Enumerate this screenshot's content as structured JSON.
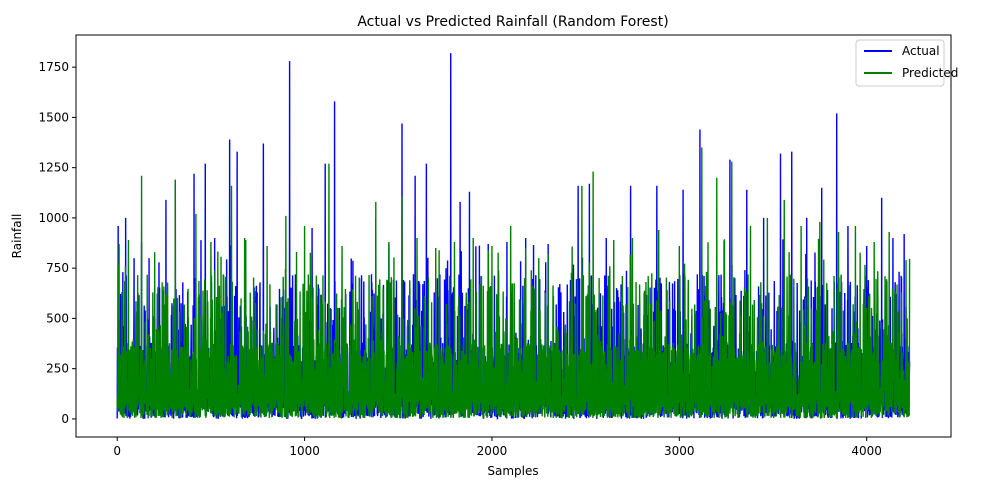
{
  "chart_data": {
    "type": "line",
    "title": "Actual vs Predicted Rainfall (Random Forest)",
    "xlabel": "Samples",
    "ylabel": "Rainfall",
    "xlim": [
      -220,
      4450
    ],
    "ylim": [
      -90,
      1910
    ],
    "xticks": [
      0,
      1000,
      2000,
      3000,
      4000
    ],
    "yticks": [
      0,
      250,
      500,
      750,
      1000,
      1250,
      1500,
      1750
    ],
    "n_samples": 4230,
    "grid": false,
    "legend": "top-right",
    "series": [
      {
        "name": "Actual",
        "color": "#0000ff",
        "peaks": [
          [
            5,
            960
          ],
          [
            30,
            730
          ],
          [
            45,
            1000
          ],
          [
            90,
            800
          ],
          [
            130,
            880
          ],
          [
            170,
            800
          ],
          [
            260,
            1090
          ],
          [
            310,
            1190
          ],
          [
            410,
            1220
          ],
          [
            470,
            1270
          ],
          [
            520,
            900
          ],
          [
            600,
            1390
          ],
          [
            640,
            1330
          ],
          [
            780,
            1370
          ],
          [
            920,
            1780
          ],
          [
            1040,
            950
          ],
          [
            1110,
            1270
          ],
          [
            1160,
            1580
          ],
          [
            1380,
            1000
          ],
          [
            1450,
            870
          ],
          [
            1520,
            1470
          ],
          [
            1590,
            1210
          ],
          [
            1650,
            1270
          ],
          [
            1780,
            1820
          ],
          [
            1830,
            1080
          ],
          [
            1880,
            1130
          ],
          [
            1980,
            870
          ],
          [
            2080,
            880
          ],
          [
            2180,
            900
          ],
          [
            2300,
            870
          ],
          [
            2460,
            1160
          ],
          [
            2520,
            1170
          ],
          [
            2610,
            900
          ],
          [
            2740,
            1160
          ],
          [
            2880,
            1160
          ],
          [
            3020,
            1140
          ],
          [
            3110,
            1440
          ],
          [
            3270,
            1290
          ],
          [
            3360,
            1140
          ],
          [
            3450,
            1000
          ],
          [
            3540,
            1320
          ],
          [
            3600,
            1330
          ],
          [
            3680,
            1000
          ],
          [
            3760,
            1150
          ],
          [
            3840,
            1520
          ],
          [
            3900,
            960
          ],
          [
            4000,
            860
          ],
          [
            4080,
            1100
          ],
          [
            4140,
            900
          ],
          [
            4200,
            920
          ]
        ]
      },
      {
        "name": "Predicted",
        "color": "#008000",
        "peaks": [
          [
            10,
            870
          ],
          [
            60,
            890
          ],
          [
            130,
            1210
          ],
          [
            200,
            830
          ],
          [
            310,
            1190
          ],
          [
            420,
            1020
          ],
          [
            500,
            880
          ],
          [
            610,
            1160
          ],
          [
            680,
            900
          ],
          [
            800,
            860
          ],
          [
            900,
            1010
          ],
          [
            1000,
            960
          ],
          [
            1130,
            1270
          ],
          [
            1200,
            860
          ],
          [
            1380,
            1080
          ],
          [
            1450,
            880
          ],
          [
            1520,
            1110
          ],
          [
            1600,
            900
          ],
          [
            1700,
            850
          ],
          [
            1800,
            880
          ],
          [
            1900,
            900
          ],
          [
            2000,
            860
          ],
          [
            2100,
            960
          ],
          [
            2180,
            850
          ],
          [
            2300,
            820
          ],
          [
            2480,
            1160
          ],
          [
            2540,
            1230
          ],
          [
            2650,
            890
          ],
          [
            2750,
            900
          ],
          [
            2890,
            940
          ],
          [
            3000,
            860
          ],
          [
            3120,
            1350
          ],
          [
            3200,
            1200
          ],
          [
            3280,
            1280
          ],
          [
            3380,
            960
          ],
          [
            3470,
            1000
          ],
          [
            3560,
            1090
          ],
          [
            3650,
            960
          ],
          [
            3750,
            980
          ],
          [
            3850,
            930
          ],
          [
            3940,
            960
          ],
          [
            4040,
            880
          ],
          [
            4120,
            930
          ],
          [
            4210,
            790
          ]
        ]
      }
    ]
  }
}
